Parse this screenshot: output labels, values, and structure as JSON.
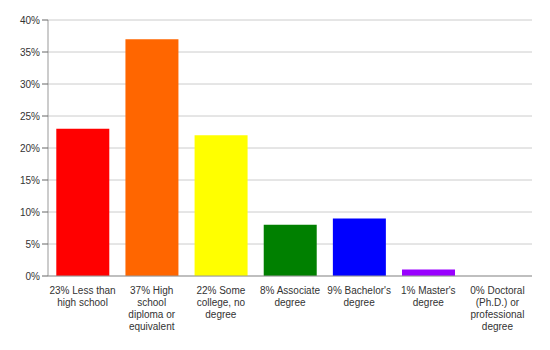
{
  "chart_data": {
    "type": "bar",
    "categories": [
      "23% Less than high school",
      "37% High school diploma or equivalent",
      "22% Some college, no degree",
      "8% Associate degree",
      "9% Bachelor's degree",
      "1% Master's degree",
      "0% Doctoral (Ph.D.) or professional degree"
    ],
    "values": [
      23,
      37,
      22,
      8,
      9,
      1,
      0
    ],
    "colors": [
      "#ff0000",
      "#ff6600",
      "#ffff00",
      "#008000",
      "#0000ff",
      "#9900ff",
      "#ff00ff"
    ],
    "ylim": [
      0,
      40
    ],
    "yticks": [
      {
        "value": 0,
        "label": "0%"
      },
      {
        "value": 5,
        "label": "5%"
      },
      {
        "value": 10,
        "label": "10%"
      },
      {
        "value": 15,
        "label": "15%"
      },
      {
        "value": 20,
        "label": "20%"
      },
      {
        "value": 25,
        "label": "25%"
      },
      {
        "value": 30,
        "label": "30%"
      },
      {
        "value": 35,
        "label": "35%"
      },
      {
        "value": 40,
        "label": "40%"
      }
    ],
    "grid": true
  }
}
